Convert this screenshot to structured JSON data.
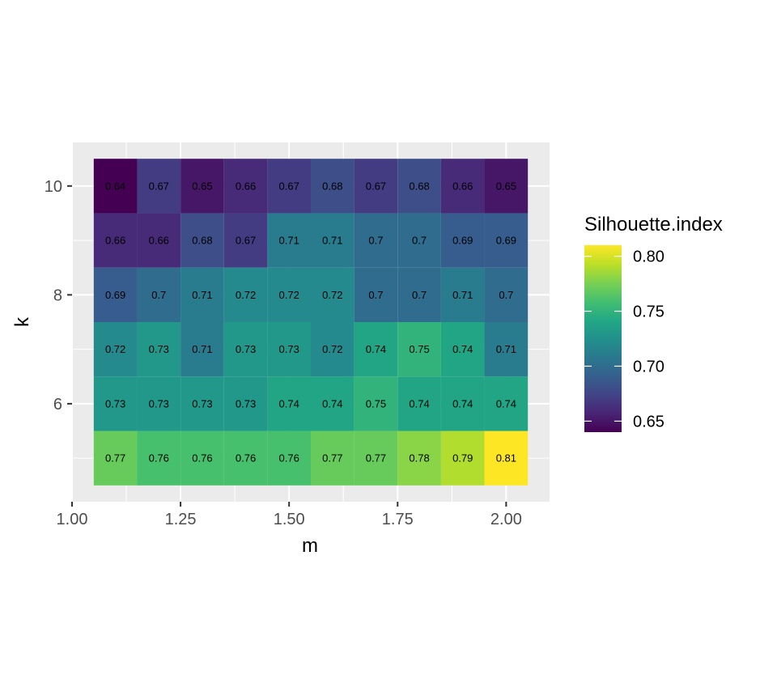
{
  "chart_data": {
    "type": "heatmap",
    "title": "",
    "xlabel": "m",
    "ylabel": "k",
    "xlim": [
      1.0,
      2.1
    ],
    "ylim": [
      4.2,
      10.8
    ],
    "x_ticks": [
      "1.00",
      "1.25",
      "1.50",
      "1.75",
      "2.00"
    ],
    "x_tick_values": [
      1.0,
      1.25,
      1.5,
      1.75,
      2.0
    ],
    "y_ticks": [
      "6",
      "8",
      "10"
    ],
    "y_tick_values": [
      6,
      8,
      10
    ],
    "x": [
      1.1,
      1.2,
      1.3,
      1.4,
      1.5,
      1.6,
      1.7,
      1.8,
      1.9,
      2.0
    ],
    "y": [
      5,
      6,
      7,
      8,
      9,
      10
    ],
    "values": [
      [
        0.77,
        0.76,
        0.76,
        0.76,
        0.76,
        0.77,
        0.77,
        0.78,
        0.79,
        0.81
      ],
      [
        0.73,
        0.73,
        0.73,
        0.73,
        0.74,
        0.74,
        0.75,
        0.74,
        0.74,
        0.74
      ],
      [
        0.72,
        0.73,
        0.71,
        0.73,
        0.73,
        0.72,
        0.74,
        0.75,
        0.74,
        0.71
      ],
      [
        0.69,
        0.7,
        0.71,
        0.72,
        0.72,
        0.72,
        0.7,
        0.7,
        0.71,
        0.7
      ],
      [
        0.66,
        0.66,
        0.68,
        0.67,
        0.71,
        0.71,
        0.7,
        0.7,
        0.69,
        0.69
      ],
      [
        0.64,
        0.67,
        0.65,
        0.66,
        0.67,
        0.68,
        0.67,
        0.68,
        0.66,
        0.65
      ]
    ],
    "legend": {
      "title": "Silhouette.index",
      "placement": "right",
      "ticks": [
        "0.65",
        "0.70",
        "0.75",
        "0.80"
      ],
      "tick_values": [
        0.65,
        0.7,
        0.75,
        0.8
      ],
      "range": [
        0.64,
        0.81
      ],
      "colormap": "viridis"
    },
    "grid": true,
    "panel_background": "#ebebeb",
    "gridline_color": "#ffffff"
  }
}
